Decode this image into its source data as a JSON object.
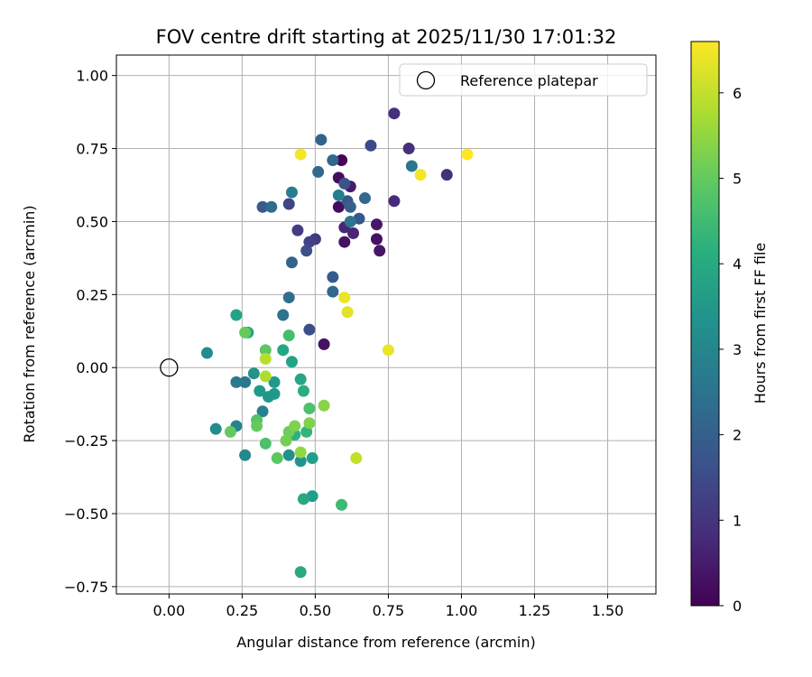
{
  "chart_data": {
    "type": "scatter",
    "title": "FOV centre drift starting at 2025/11/30 17:01:32",
    "xlabel": "Angular distance from reference (arcmin)",
    "ylabel": "Rotation from reference (arcmin)",
    "xlim": [
      -0.18,
      1.665
    ],
    "ylim": [
      -0.775,
      1.07
    ],
    "xticks": [
      0.0,
      0.25,
      0.5,
      0.75,
      1.0,
      1.25,
      1.5
    ],
    "xtick_labels": [
      "0.00",
      "0.25",
      "0.50",
      "0.75",
      "1.00",
      "1.25",
      "1.50"
    ],
    "yticks": [
      -0.75,
      -0.5,
      -0.25,
      0.0,
      0.25,
      0.5,
      0.75,
      1.0
    ],
    "ytick_labels": [
      "−0.75",
      "−0.50",
      "−0.25",
      "0.00",
      "0.25",
      "0.50",
      "0.75",
      "1.00"
    ],
    "grid": true,
    "legend": {
      "label": "Reference platepar",
      "placement": "top-right"
    },
    "reference_point": {
      "x": 0.0,
      "y": 0.0
    },
    "colorbar": {
      "label": "Hours from first FF file",
      "colormap": "viridis",
      "range": [
        0,
        6.6
      ],
      "ticks": [
        0,
        1,
        2,
        3,
        4,
        5,
        6
      ],
      "tick_labels": [
        "0",
        "1",
        "2",
        "3",
        "4",
        "5",
        "6"
      ]
    },
    "points": [
      {
        "x": 0.59,
        "y": 0.71,
        "h": 0.1
      },
      {
        "x": 0.58,
        "y": 0.65,
        "h": 0.2
      },
      {
        "x": 0.58,
        "y": 0.55,
        "h": 0.2
      },
      {
        "x": 0.6,
        "y": 0.43,
        "h": 0.3
      },
      {
        "x": 0.71,
        "y": 0.44,
        "h": 0.3
      },
      {
        "x": 0.71,
        "y": 0.49,
        "h": 0.4
      },
      {
        "x": 0.72,
        "y": 0.4,
        "h": 0.4
      },
      {
        "x": 0.53,
        "y": 0.08,
        "h": 0.3
      },
      {
        "x": 0.62,
        "y": 0.62,
        "h": 0.5
      },
      {
        "x": 0.63,
        "y": 0.46,
        "h": 0.7
      },
      {
        "x": 0.6,
        "y": 0.48,
        "h": 0.7
      },
      {
        "x": 0.77,
        "y": 0.87,
        "h": 0.9
      },
      {
        "x": 0.82,
        "y": 0.75,
        "h": 0.9
      },
      {
        "x": 0.95,
        "y": 0.66,
        "h": 0.9
      },
      {
        "x": 0.77,
        "y": 0.57,
        "h": 0.8
      },
      {
        "x": 0.5,
        "y": 0.44,
        "h": 1.1
      },
      {
        "x": 0.44,
        "y": 0.47,
        "h": 1.2
      },
      {
        "x": 0.48,
        "y": 0.43,
        "h": 1.3
      },
      {
        "x": 0.41,
        "y": 0.56,
        "h": 1.4
      },
      {
        "x": 0.69,
        "y": 0.76,
        "h": 1.5
      },
      {
        "x": 0.47,
        "y": 0.4,
        "h": 1.6
      },
      {
        "x": 0.48,
        "y": 0.13,
        "h": 1.6
      },
      {
        "x": 0.6,
        "y": 0.63,
        "h": 1.7
      },
      {
        "x": 0.61,
        "y": 0.57,
        "h": 1.8
      },
      {
        "x": 0.65,
        "y": 0.51,
        "h": 1.8
      },
      {
        "x": 0.56,
        "y": 0.31,
        "h": 1.9
      },
      {
        "x": 0.32,
        "y": 0.55,
        "h": 1.9
      },
      {
        "x": 0.62,
        "y": 0.55,
        "h": 2.0
      },
      {
        "x": 0.52,
        "y": 0.78,
        "h": 2.1
      },
      {
        "x": 0.42,
        "y": 0.36,
        "h": 2.1
      },
      {
        "x": 0.56,
        "y": 0.71,
        "h": 2.2
      },
      {
        "x": 0.51,
        "y": 0.67,
        "h": 2.2
      },
      {
        "x": 0.67,
        "y": 0.58,
        "h": 2.2
      },
      {
        "x": 0.56,
        "y": 0.26,
        "h": 2.2
      },
      {
        "x": 0.35,
        "y": 0.55,
        "h": 2.3
      },
      {
        "x": 0.41,
        "y": 0.24,
        "h": 2.4
      },
      {
        "x": 0.39,
        "y": 0.18,
        "h": 2.5
      },
      {
        "x": 0.83,
        "y": 0.69,
        "h": 2.6
      },
      {
        "x": 0.62,
        "y": 0.5,
        "h": 2.6
      },
      {
        "x": 0.26,
        "y": -0.05,
        "h": 2.6
      },
      {
        "x": 0.23,
        "y": -0.05,
        "h": 2.7
      },
      {
        "x": 0.42,
        "y": 0.6,
        "h": 2.8
      },
      {
        "x": 0.58,
        "y": 0.59,
        "h": 2.8
      },
      {
        "x": 0.32,
        "y": -0.15,
        "h": 2.9
      },
      {
        "x": 0.23,
        "y": -0.2,
        "h": 3.0
      },
      {
        "x": 0.26,
        "y": -0.3,
        "h": 3.1
      },
      {
        "x": 0.16,
        "y": -0.21,
        "h": 3.2
      },
      {
        "x": 0.13,
        "y": 0.05,
        "h": 3.2
      },
      {
        "x": 0.41,
        "y": -0.3,
        "h": 3.3
      },
      {
        "x": 0.45,
        "y": -0.32,
        "h": 3.4
      },
      {
        "x": 0.29,
        "y": -0.02,
        "h": 3.4
      },
      {
        "x": 0.34,
        "y": -0.1,
        "h": 3.5
      },
      {
        "x": 0.36,
        "y": -0.09,
        "h": 3.5
      },
      {
        "x": 0.36,
        "y": -0.05,
        "h": 3.5
      },
      {
        "x": 0.31,
        "y": -0.08,
        "h": 3.6
      },
      {
        "x": 0.49,
        "y": -0.44,
        "h": 3.7
      },
      {
        "x": 0.49,
        "y": -0.31,
        "h": 3.7
      },
      {
        "x": 0.23,
        "y": 0.18,
        "h": 3.8
      },
      {
        "x": 0.42,
        "y": 0.02,
        "h": 3.8
      },
      {
        "x": 0.39,
        "y": 0.06,
        "h": 3.9
      },
      {
        "x": 0.27,
        "y": 0.12,
        "h": 3.9
      },
      {
        "x": 0.45,
        "y": -0.04,
        "h": 3.9
      },
      {
        "x": 0.46,
        "y": -0.45,
        "h": 4.0
      },
      {
        "x": 0.45,
        "y": -0.7,
        "h": 4.0
      },
      {
        "x": 0.46,
        "y": -0.08,
        "h": 4.1
      },
      {
        "x": 0.43,
        "y": -0.23,
        "h": 4.2
      },
      {
        "x": 0.47,
        "y": -0.22,
        "h": 4.3
      },
      {
        "x": 0.59,
        "y": -0.47,
        "h": 4.5
      },
      {
        "x": 0.41,
        "y": 0.11,
        "h": 4.6
      },
      {
        "x": 0.33,
        "y": -0.26,
        "h": 4.7
      },
      {
        "x": 0.48,
        "y": -0.14,
        "h": 4.7
      },
      {
        "x": 0.3,
        "y": -0.18,
        "h": 4.8
      },
      {
        "x": 0.37,
        "y": -0.31,
        "h": 4.9
      },
      {
        "x": 0.33,
        "y": 0.06,
        "h": 4.9
      },
      {
        "x": 0.21,
        "y": -0.22,
        "h": 5.0
      },
      {
        "x": 0.26,
        "y": 0.12,
        "h": 5.0
      },
      {
        "x": 0.3,
        "y": -0.2,
        "h": 5.0
      },
      {
        "x": 0.41,
        "y": -0.22,
        "h": 5.1
      },
      {
        "x": 0.4,
        "y": -0.25,
        "h": 5.2
      },
      {
        "x": 0.48,
        "y": -0.19,
        "h": 5.3
      },
      {
        "x": 0.43,
        "y": -0.2,
        "h": 5.3
      },
      {
        "x": 0.53,
        "y": -0.13,
        "h": 5.4
      },
      {
        "x": 0.45,
        "y": -0.29,
        "h": 5.5
      },
      {
        "x": 0.33,
        "y": -0.03,
        "h": 5.8
      },
      {
        "x": 0.33,
        "y": 0.03,
        "h": 5.9
      },
      {
        "x": 0.64,
        "y": -0.31,
        "h": 6.0
      },
      {
        "x": 0.61,
        "y": 0.19,
        "h": 6.3
      },
      {
        "x": 0.6,
        "y": 0.24,
        "h": 6.4
      },
      {
        "x": 0.75,
        "y": 0.06,
        "h": 6.4
      },
      {
        "x": 0.45,
        "y": 0.73,
        "h": 6.5
      },
      {
        "x": 0.86,
        "y": 0.66,
        "h": 6.5
      },
      {
        "x": 1.02,
        "y": 0.73,
        "h": 6.6
      }
    ]
  }
}
